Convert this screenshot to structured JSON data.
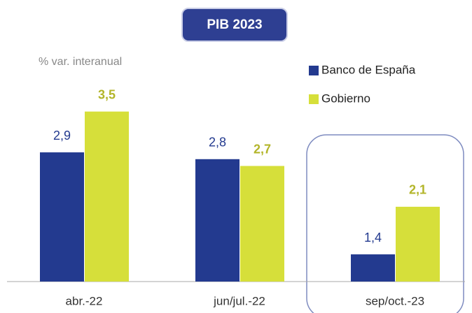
{
  "chart_data": {
    "type": "bar",
    "title": "PIB 2023",
    "subtitle": "% var. interanual",
    "categories": [
      "abr.-22",
      "jun/jul.-22",
      "sep/oct.-23"
    ],
    "series": [
      {
        "name": "Banco de España",
        "color": "#233a8f",
        "label_color": "#233a8f",
        "values": [
          2.9,
          2.8,
          1.4
        ],
        "value_labels": [
          "2,9",
          "2,8",
          "1,4"
        ]
      },
      {
        "name": "Gobierno",
        "color": "#d6df3a",
        "label_color": "#b3b52a",
        "values": [
          3.5,
          2.7,
          2.1
        ],
        "value_labels": [
          "3,5",
          "2,7",
          "2,1"
        ]
      }
    ],
    "ylim": [
      1,
      4
    ],
    "grid": false,
    "legend": "upper right"
  }
}
